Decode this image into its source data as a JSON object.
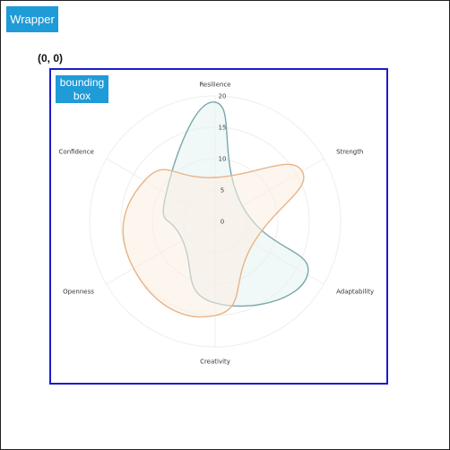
{
  "wrapper": {
    "tag_label": "Wrapper"
  },
  "origin": {
    "label": "(0, 0)"
  },
  "bbox": {
    "tag_label": "bounding\nbox"
  },
  "chart_data": {
    "type": "radar",
    "axes": [
      "Resilience",
      "Strength",
      "Adaptability",
      "Creativity",
      "Openness",
      "Confidence"
    ],
    "ticks": [
      0,
      5,
      10,
      15,
      20
    ],
    "rlim": [
      0,
      20
    ],
    "grid": true,
    "series": [
      {
        "values": [
          19,
          5,
          17,
          13,
          6,
          9
        ],
        "color": "#7aa8ac",
        "fill": "#e6f2f2"
      },
      {
        "values": [
          7,
          16,
          7,
          15,
          15,
          13
        ],
        "color": "#e8b487",
        "fill": "#fbeee2"
      }
    ]
  }
}
